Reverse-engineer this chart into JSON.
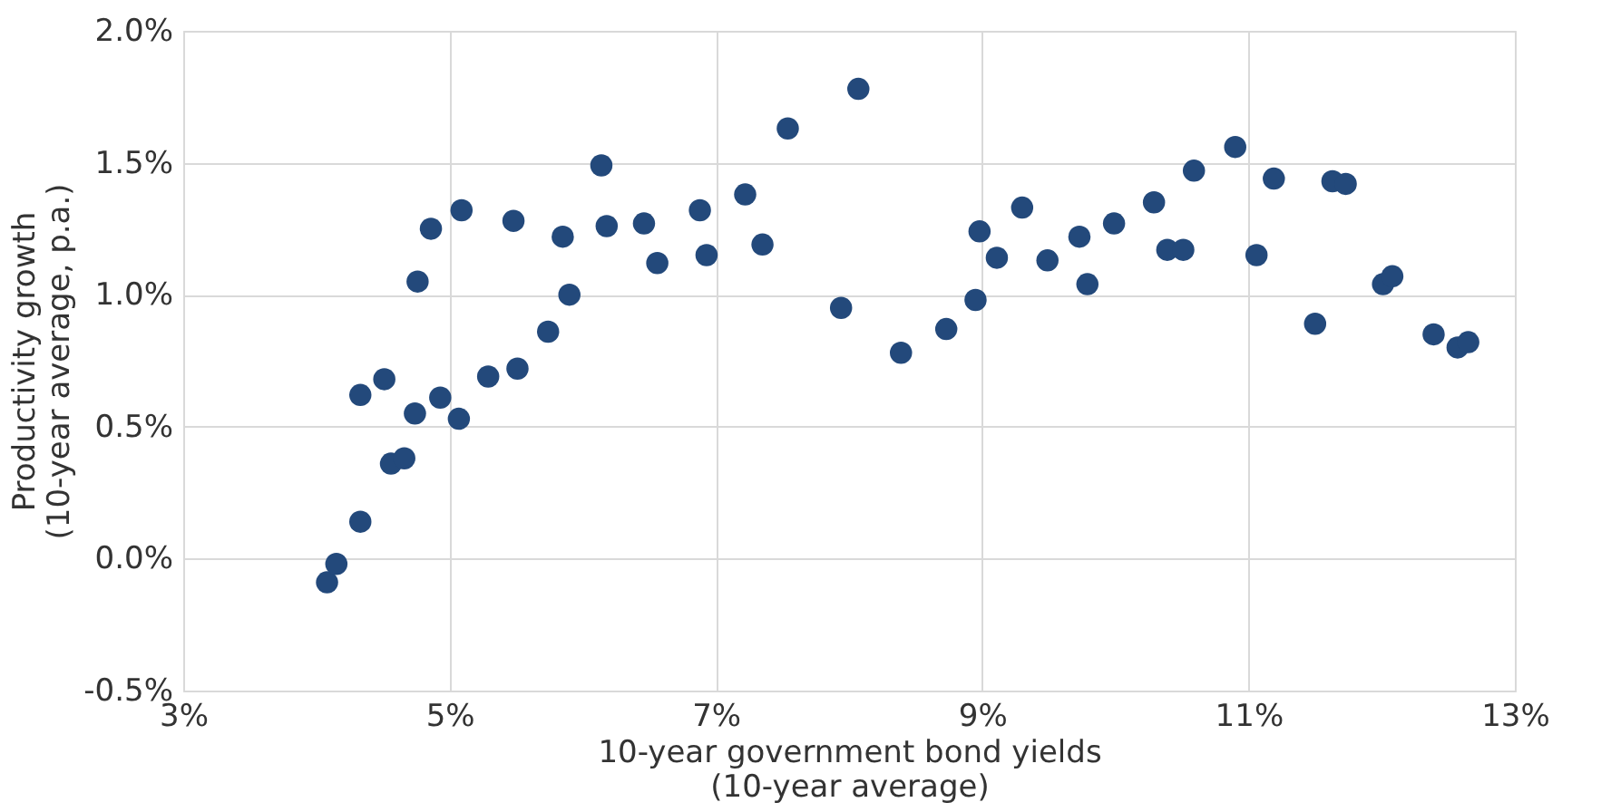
{
  "chart_data": {
    "type": "scatter",
    "xlabel": "10-year government bond yields\n(10-year average)",
    "ylabel": "Productivity growth\n(10-year average, p.a.)",
    "x": [
      4.08,
      4.15,
      4.33,
      4.33,
      4.51,
      4.56,
      4.66,
      4.74,
      4.76,
      4.86,
      4.93,
      5.07,
      5.09,
      5.29,
      5.48,
      5.51,
      5.74,
      5.85,
      5.9,
      6.14,
      6.18,
      6.46,
      6.56,
      6.88,
      6.93,
      7.22,
      7.35,
      7.54,
      7.94,
      8.07,
      8.39,
      8.73,
      8.95,
      8.98,
      9.11,
      9.3,
      9.49,
      9.73,
      9.79,
      9.99,
      10.29,
      10.39,
      10.51,
      10.59,
      10.9,
      11.06,
      11.19,
      11.5,
      11.63,
      11.73,
      12.01,
      12.08,
      12.39,
      12.57,
      12.65
    ],
    "series": [
      {
        "color": "#23497b",
        "values": [
          -0.09,
          -0.02,
          0.14,
          0.62,
          0.68,
          0.36,
          0.38,
          0.55,
          1.05,
          1.25,
          0.61,
          0.53,
          1.32,
          0.69,
          1.28,
          0.72,
          0.86,
          1.22,
          1.0,
          1.49,
          1.26,
          1.27,
          1.12,
          1.32,
          1.15,
          1.38,
          1.19,
          1.63,
          0.95,
          1.78,
          0.78,
          0.87,
          0.98,
          1.24,
          1.14,
          1.33,
          1.13,
          1.22,
          1.04,
          1.27,
          1.35,
          1.17,
          1.17,
          1.47,
          1.56,
          1.15,
          1.44,
          0.89,
          1.43,
          1.42,
          1.04,
          1.07,
          0.85,
          0.8,
          0.82
        ]
      }
    ],
    "xlim": [
      3,
      13
    ],
    "xticks": [
      {
        "value": 3,
        "label": "3%"
      },
      {
        "value": 5,
        "label": "5%"
      },
      {
        "value": 7,
        "label": "7%"
      },
      {
        "value": 9,
        "label": "9%"
      },
      {
        "value": 11,
        "label": "11%"
      },
      {
        "value": 13,
        "label": "13%"
      }
    ],
    "ylim": [
      -0.5,
      2.0
    ],
    "yticks": [
      {
        "value": -0.5,
        "label": "-0.5%"
      },
      {
        "value": 0.0,
        "label": "0.0%"
      },
      {
        "value": 0.5,
        "label": "0.5%"
      },
      {
        "value": 1.0,
        "label": "1.0%"
      },
      {
        "value": 1.5,
        "label": "1.5%"
      },
      {
        "value": 2.0,
        "label": "2.0%"
      }
    ],
    "grid": true,
    "marker": "circle",
    "legend": false
  }
}
